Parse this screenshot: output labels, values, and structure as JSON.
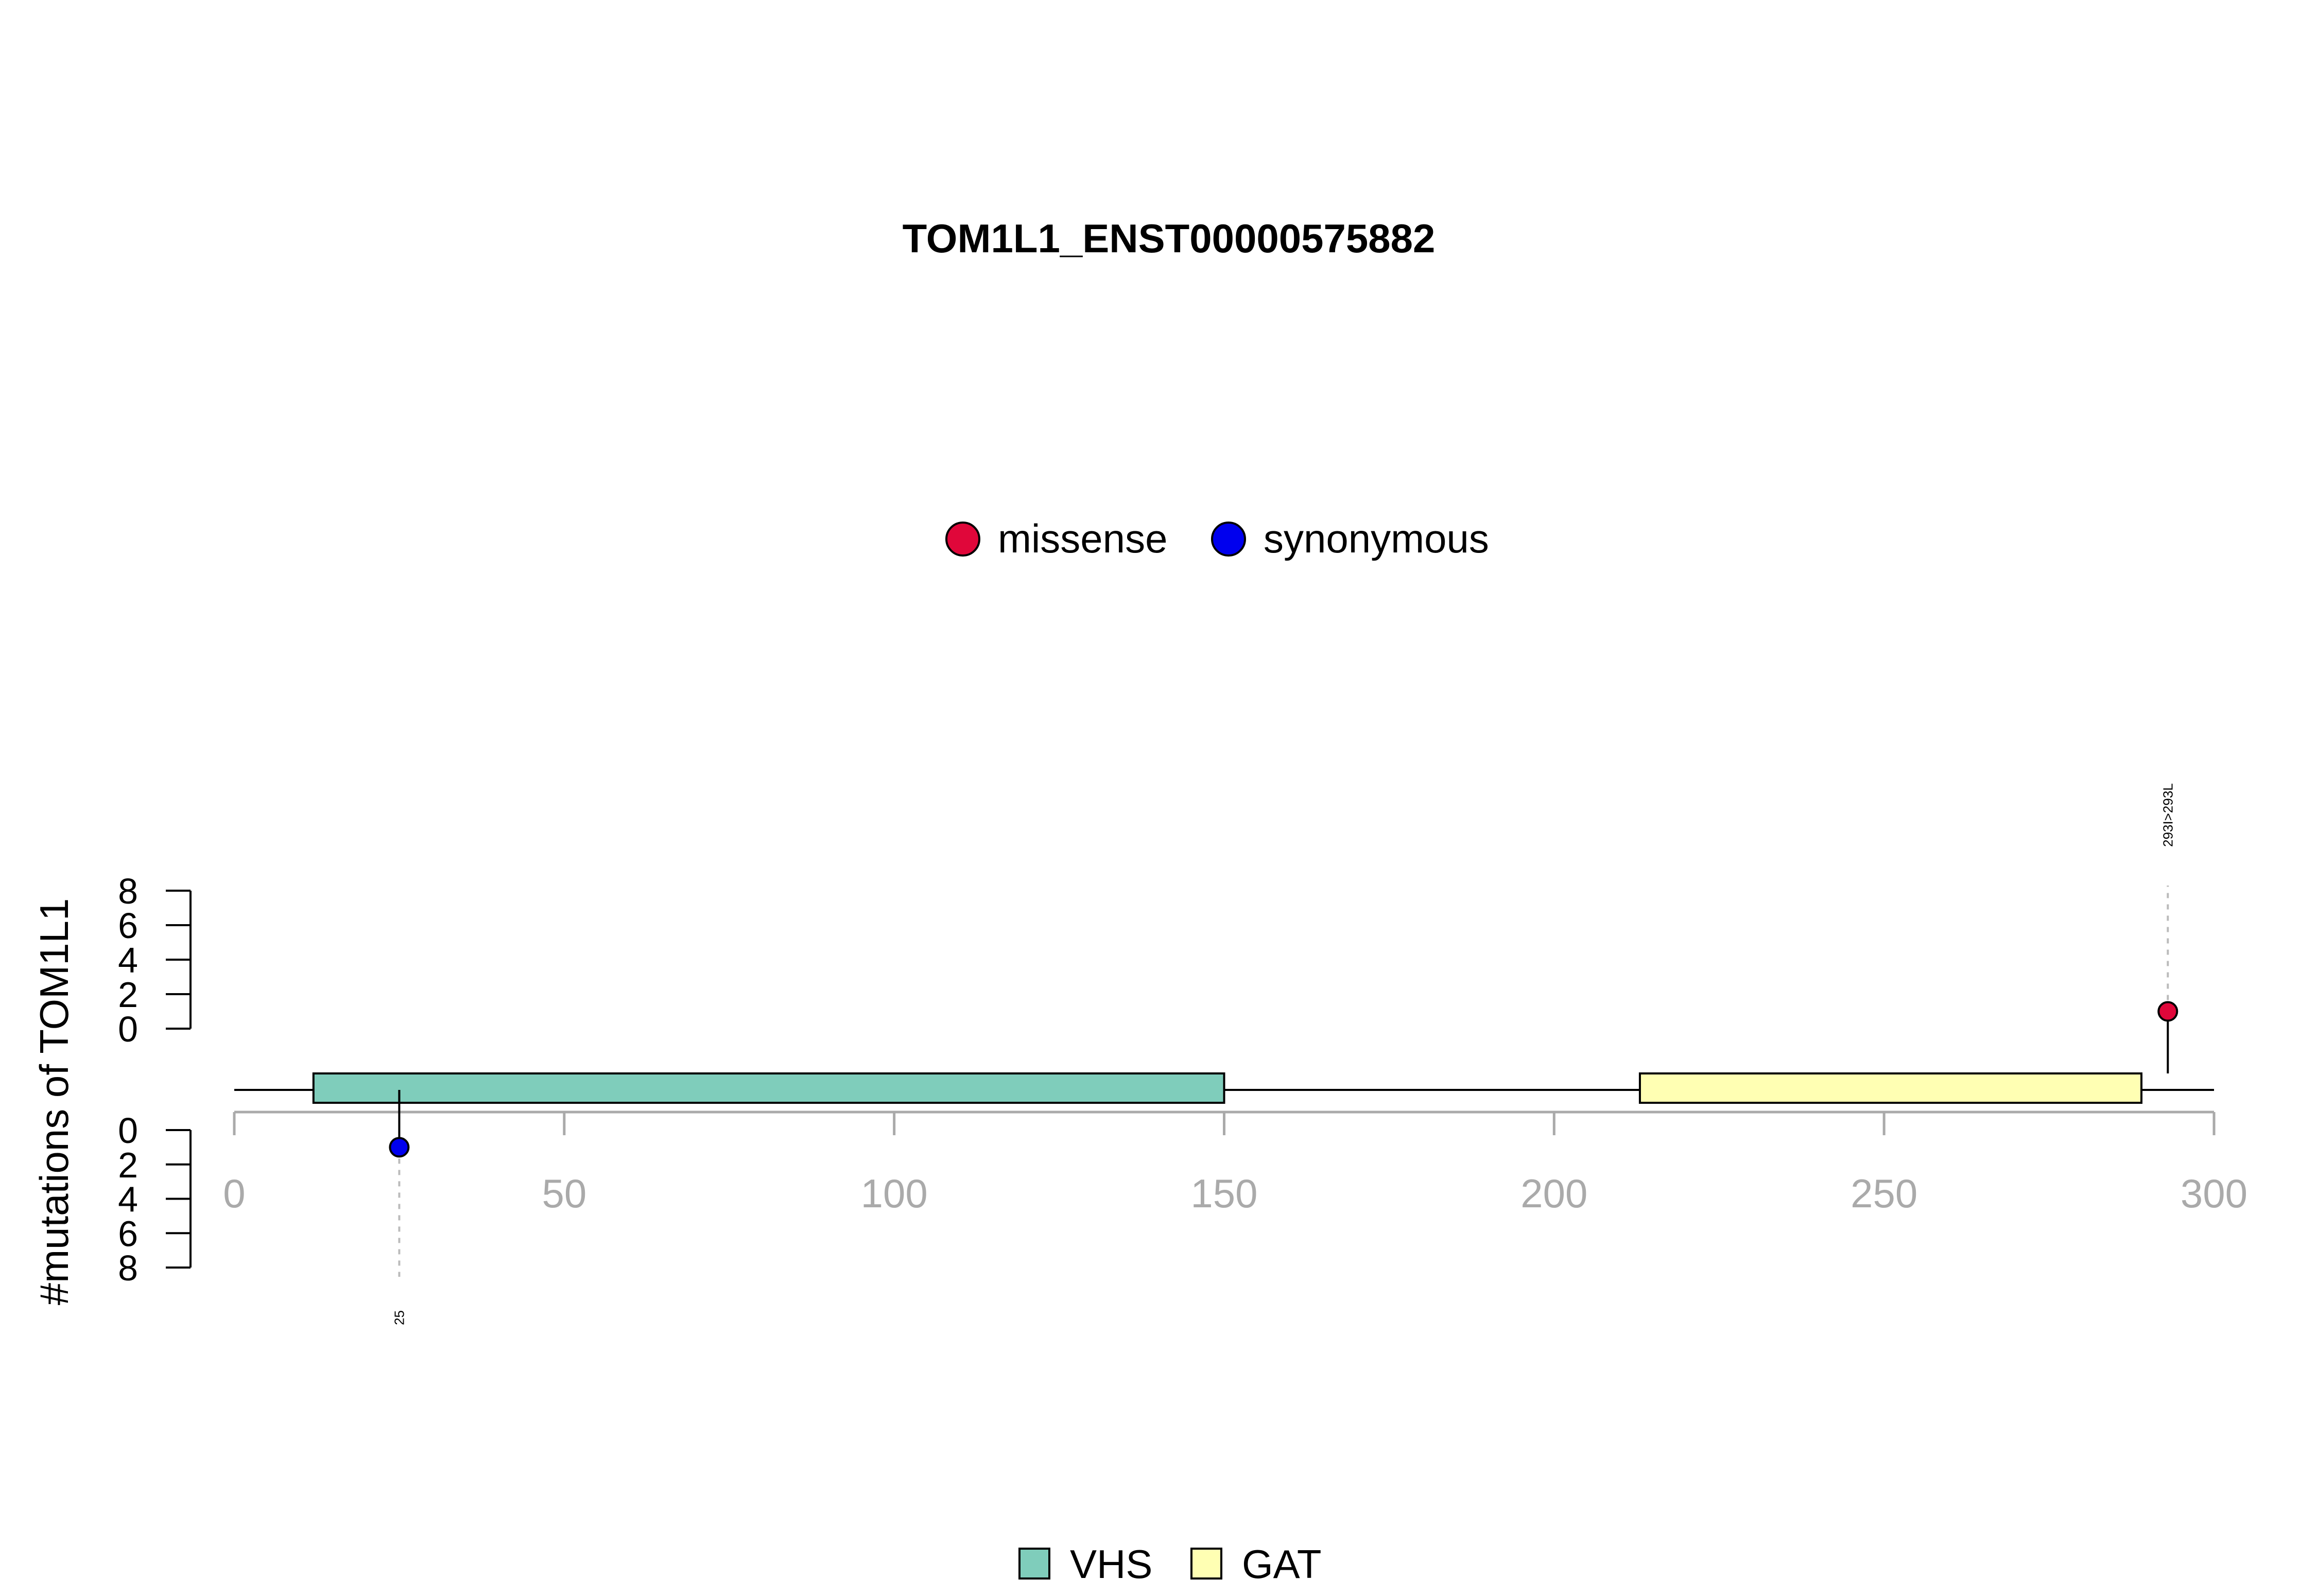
{
  "chart_data": {
    "type": "lollipop",
    "title": "TOM1L1_ENST00000575882",
    "ylabel": "#mutations of TOM1L1",
    "xlim": [
      0,
      300
    ],
    "x_ticks": [
      "0",
      "50",
      "100",
      "150",
      "200",
      "250",
      "300"
    ],
    "y_ticks_top": [
      "8",
      "6",
      "4",
      "2",
      "0"
    ],
    "y_ticks_bottom": [
      "0",
      "2",
      "4",
      "6",
      "8"
    ],
    "ylim": [
      0,
      8
    ],
    "mutation_legend": [
      {
        "name": "missense",
        "color": "#e0073a"
      },
      {
        "name": "synonymous",
        "color": "#0000ee"
      }
    ],
    "domain_legend": [
      {
        "name": "VHS",
        "color": "#7fcdbb"
      },
      {
        "name": "GAT",
        "color": "#ffffb3"
      }
    ],
    "domains": [
      {
        "name": "VHS",
        "start": 12,
        "end": 150,
        "color": "#7fcdbb"
      },
      {
        "name": "GAT",
        "start": 213,
        "end": 289,
        "color": "#ffffb3"
      }
    ],
    "mutations": [
      {
        "position": 25,
        "count": 1,
        "type": "synonymous",
        "side": "bottom",
        "label": "25",
        "color": "#0000ee"
      },
      {
        "position": 293,
        "count": 1,
        "type": "missense",
        "side": "top",
        "label": "293I>293L",
        "color": "#e0073a"
      }
    ]
  }
}
